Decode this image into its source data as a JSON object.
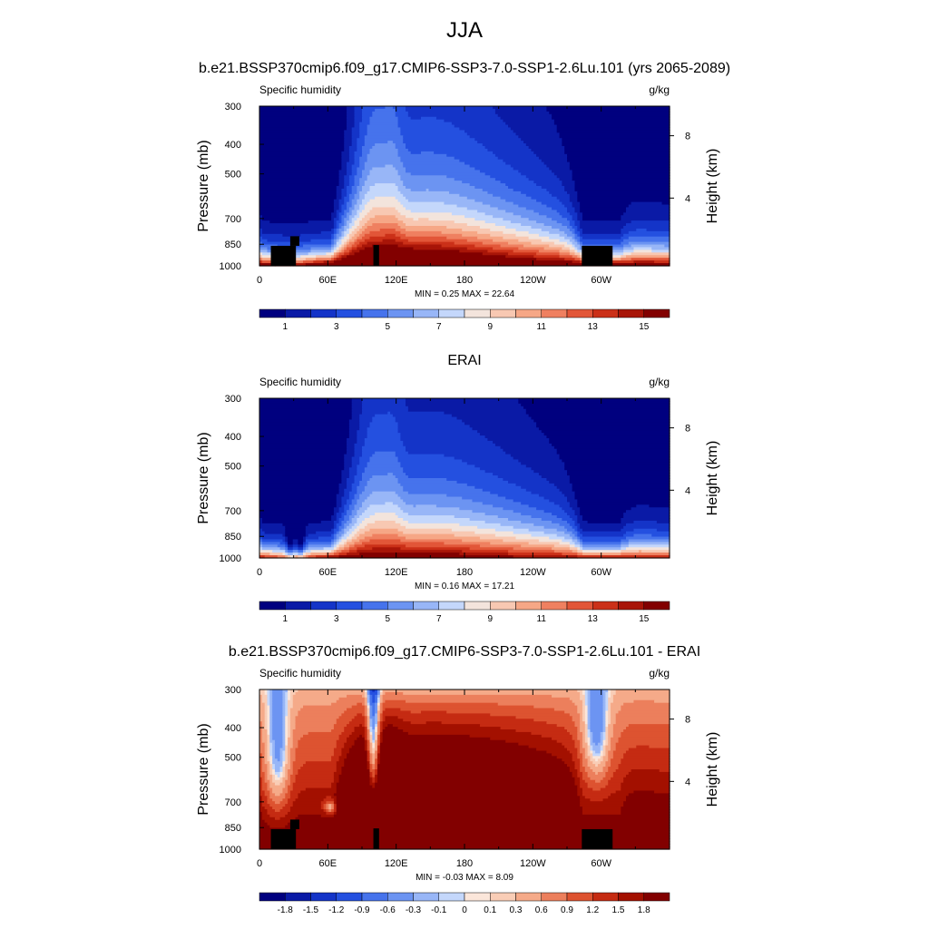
{
  "figure": {
    "title": "JJA"
  },
  "colors": {
    "abs": [
      "#00007f",
      "#0a1aa6",
      "#1434c8",
      "#2450e0",
      "#4673ec",
      "#6c94f2",
      "#98b6f7",
      "#c4d7fb",
      "#f3e4dc",
      "#f8c8b2",
      "#f6a786",
      "#ef8060",
      "#e25638",
      "#cb3018",
      "#a81508",
      "#820000"
    ],
    "diff": [
      "#00007f",
      "#0a1aa6",
      "#1434c8",
      "#2450e0",
      "#4673ec",
      "#6c94f2",
      "#98b6f7",
      "#c4d7fb",
      "#fbe6da",
      "#f9cdb6",
      "#f5aa89",
      "#ec7f5c",
      "#dd5330",
      "#c52b12",
      "#a31000",
      "#820000"
    ]
  },
  "chart_data": [
    {
      "type": "contour",
      "title": "b.e21.BSSP370cmip6.f09_g17.CMIP6-SSP3-7.0-SSP1-2.6Lu.101 (yrs 2065-2089)",
      "left_label": "Specific humidity",
      "right_label": "g/kg",
      "ylabel": "Pressure (mb)",
      "ylabel_right": "Height (km)",
      "y_ticks": [
        "300",
        "400",
        "500",
        "700",
        "850",
        "1000"
      ],
      "y_right_ticks": [
        "8",
        "4"
      ],
      "x_ticks": [
        "0",
        "60E",
        "120E",
        "180",
        "120W",
        "60W"
      ],
      "stats": "MIN =   0.25  MAX =  22.64",
      "colorbar_labels": [
        "1",
        "3",
        "5",
        "7",
        "9",
        "11",
        "13",
        "15"
      ],
      "palette": "abs",
      "field": "model",
      "terrain": "yes"
    },
    {
      "type": "contour",
      "title": "ERAI",
      "left_label": "Specific humidity",
      "right_label": "g/kg",
      "ylabel": "Pressure (mb)",
      "ylabel_right": "Height (km)",
      "y_ticks": [
        "300",
        "400",
        "500",
        "700",
        "850",
        "1000"
      ],
      "y_right_ticks": [
        "8",
        "4"
      ],
      "x_ticks": [
        "0",
        "60E",
        "120E",
        "180",
        "120W",
        "60W"
      ],
      "stats": "MIN =   0.16  MAX =  17.21",
      "colorbar_labels": [
        "1",
        "3",
        "5",
        "7",
        "9",
        "11",
        "13",
        "15"
      ],
      "palette": "abs",
      "field": "obs",
      "terrain": "no"
    },
    {
      "type": "contour",
      "title": "b.e21.BSSP370cmip6.f09_g17.CMIP6-SSP3-7.0-SSP1-2.6Lu.101 - ERAI",
      "left_label": "Specific humidity",
      "right_label": "g/kg",
      "ylabel": "Pressure (mb)",
      "ylabel_right": "Height (km)",
      "y_ticks": [
        "300",
        "400",
        "500",
        "700",
        "850",
        "1000"
      ],
      "y_right_ticks": [
        "8",
        "4"
      ],
      "x_ticks": [
        "0",
        "60E",
        "120E",
        "180",
        "120W",
        "60W"
      ],
      "stats": "MIN =  -0.03  MAX =   8.09",
      "colorbar_labels": [
        "-1.8",
        "-1.5",
        "-1.2",
        "-0.9",
        "-0.6",
        "-0.3",
        "-0.1",
        "0",
        "0.1",
        "0.3",
        "0.6",
        "0.9",
        "1.2",
        "1.5",
        "1.8"
      ],
      "palette": "diff",
      "field": "diff",
      "terrain": "yes"
    }
  ]
}
